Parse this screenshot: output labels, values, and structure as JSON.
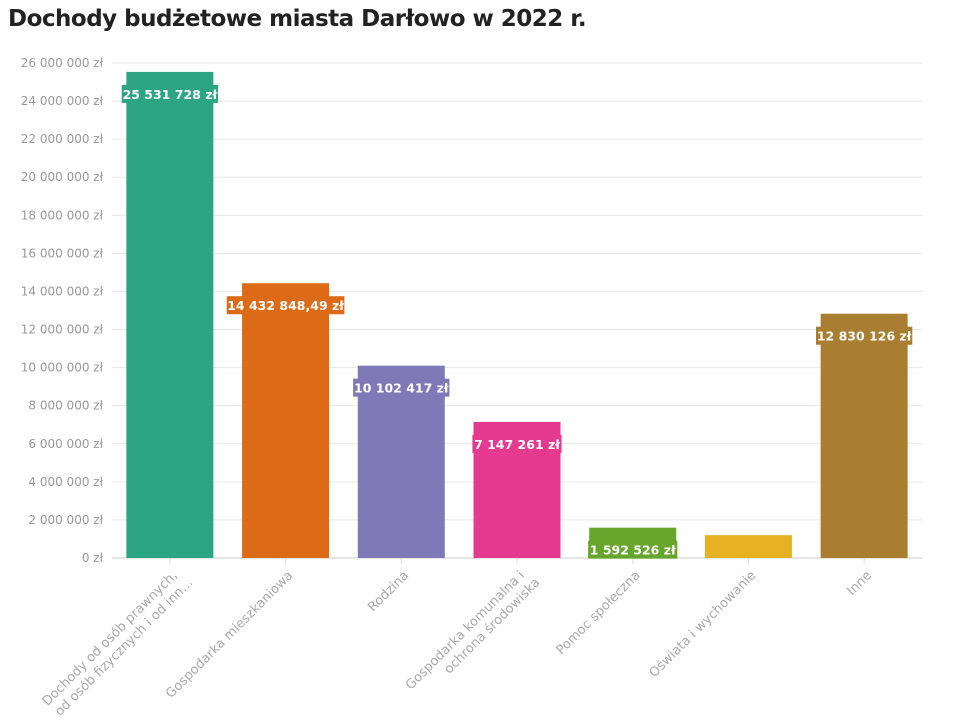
{
  "chart_data": {
    "type": "bar",
    "title": "Dochody budżetowe miasta Darłowo w 2022 r.",
    "categories": [
      [
        "Dochody od osób prawnych,",
        "od osób fizycznych i od inn…"
      ],
      [
        "Gospodarka mieszkaniowa"
      ],
      [
        "Rodzina"
      ],
      [
        "Gospodarka komunalna i",
        "ochrona środowiska"
      ],
      [
        "Pomoc społeczna"
      ],
      [
        "Oświata i wychowanie"
      ],
      [
        "Inne"
      ]
    ],
    "values": [
      25531728,
      14432848.49,
      10102417,
      7147261,
      1592526,
      1200000,
      12830126
    ],
    "data_labels": [
      "25 531 728 zł",
      "14 432 848,49 zł",
      "10 102 417 zł",
      "7 147 261 zł",
      "1 592 526 zł",
      "",
      "12 830 126 zł"
    ],
    "colors": [
      "#2ca582",
      "#dc6a17",
      "#7f79b7",
      "#e53a8f",
      "#67a52d",
      "#e6b222",
      "#a97e30"
    ],
    "ylim": [
      0,
      26000000
    ],
    "yticks": [
      "0 zł",
      "2 000 000 zł",
      "4 000 000 zł",
      "6 000 000 zł",
      "8 000 000 zł",
      "10 000 000 zł",
      "12 000 000 zł",
      "14 000 000 zł",
      "16 000 000 zł",
      "18 000 000 zł",
      "20 000 000 zł",
      "22 000 000 zł",
      "24 000 000 zł",
      "26 000 000 zł"
    ],
    "grid": true,
    "xlabel": "",
    "ylabel": ""
  }
}
